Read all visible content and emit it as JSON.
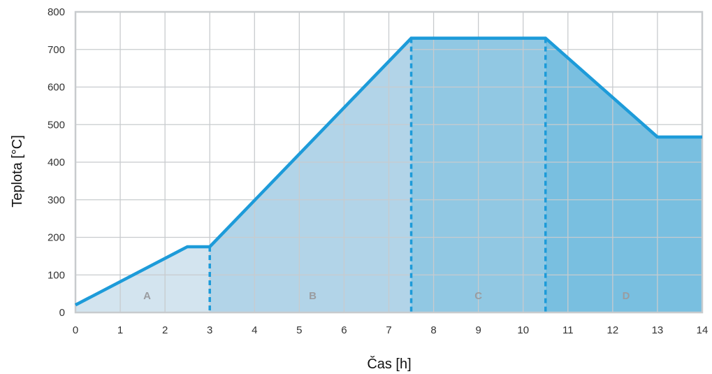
{
  "chart_data": {
    "type": "area",
    "xlabel": "Čas [h]",
    "ylabel": "Teplota [°C]",
    "xlim": [
      0,
      14
    ],
    "ylim": [
      0,
      800
    ],
    "xticks": [
      "0",
      "1",
      "2",
      "3",
      "4",
      "5",
      "6",
      "7",
      "8",
      "9",
      "10",
      "11",
      "12",
      "13",
      "14"
    ],
    "yticks": [
      "0",
      "100",
      "200",
      "300",
      "400",
      "500",
      "600",
      "700",
      "800"
    ],
    "grid": true,
    "series": [
      {
        "x": [
          0,
          2.5,
          3,
          7.5,
          10.5,
          13,
          14
        ],
        "y": [
          20,
          175,
          175,
          730,
          730,
          467,
          467
        ]
      }
    ],
    "phases": [
      {
        "label": "A",
        "start": 0,
        "end": 3,
        "label_x": 1.6,
        "fill": "#d3e4ef"
      },
      {
        "label": "B",
        "start": 3,
        "end": 7.5,
        "label_x": 5.3,
        "fill": "#b2d4e8"
      },
      {
        "label": "C",
        "start": 7.5,
        "end": 10.5,
        "label_x": 9.0,
        "fill": "#91c8e3"
      },
      {
        "label": "D",
        "start": 10.5,
        "end": 14,
        "label_x": 12.3,
        "fill": "#79bfe0"
      }
    ],
    "boundaries": [
      3,
      7.5,
      10.5
    ],
    "colors": {
      "line": "#1d9bd9",
      "grid": "#c8cbce",
      "frame": "#c8cbce"
    }
  }
}
